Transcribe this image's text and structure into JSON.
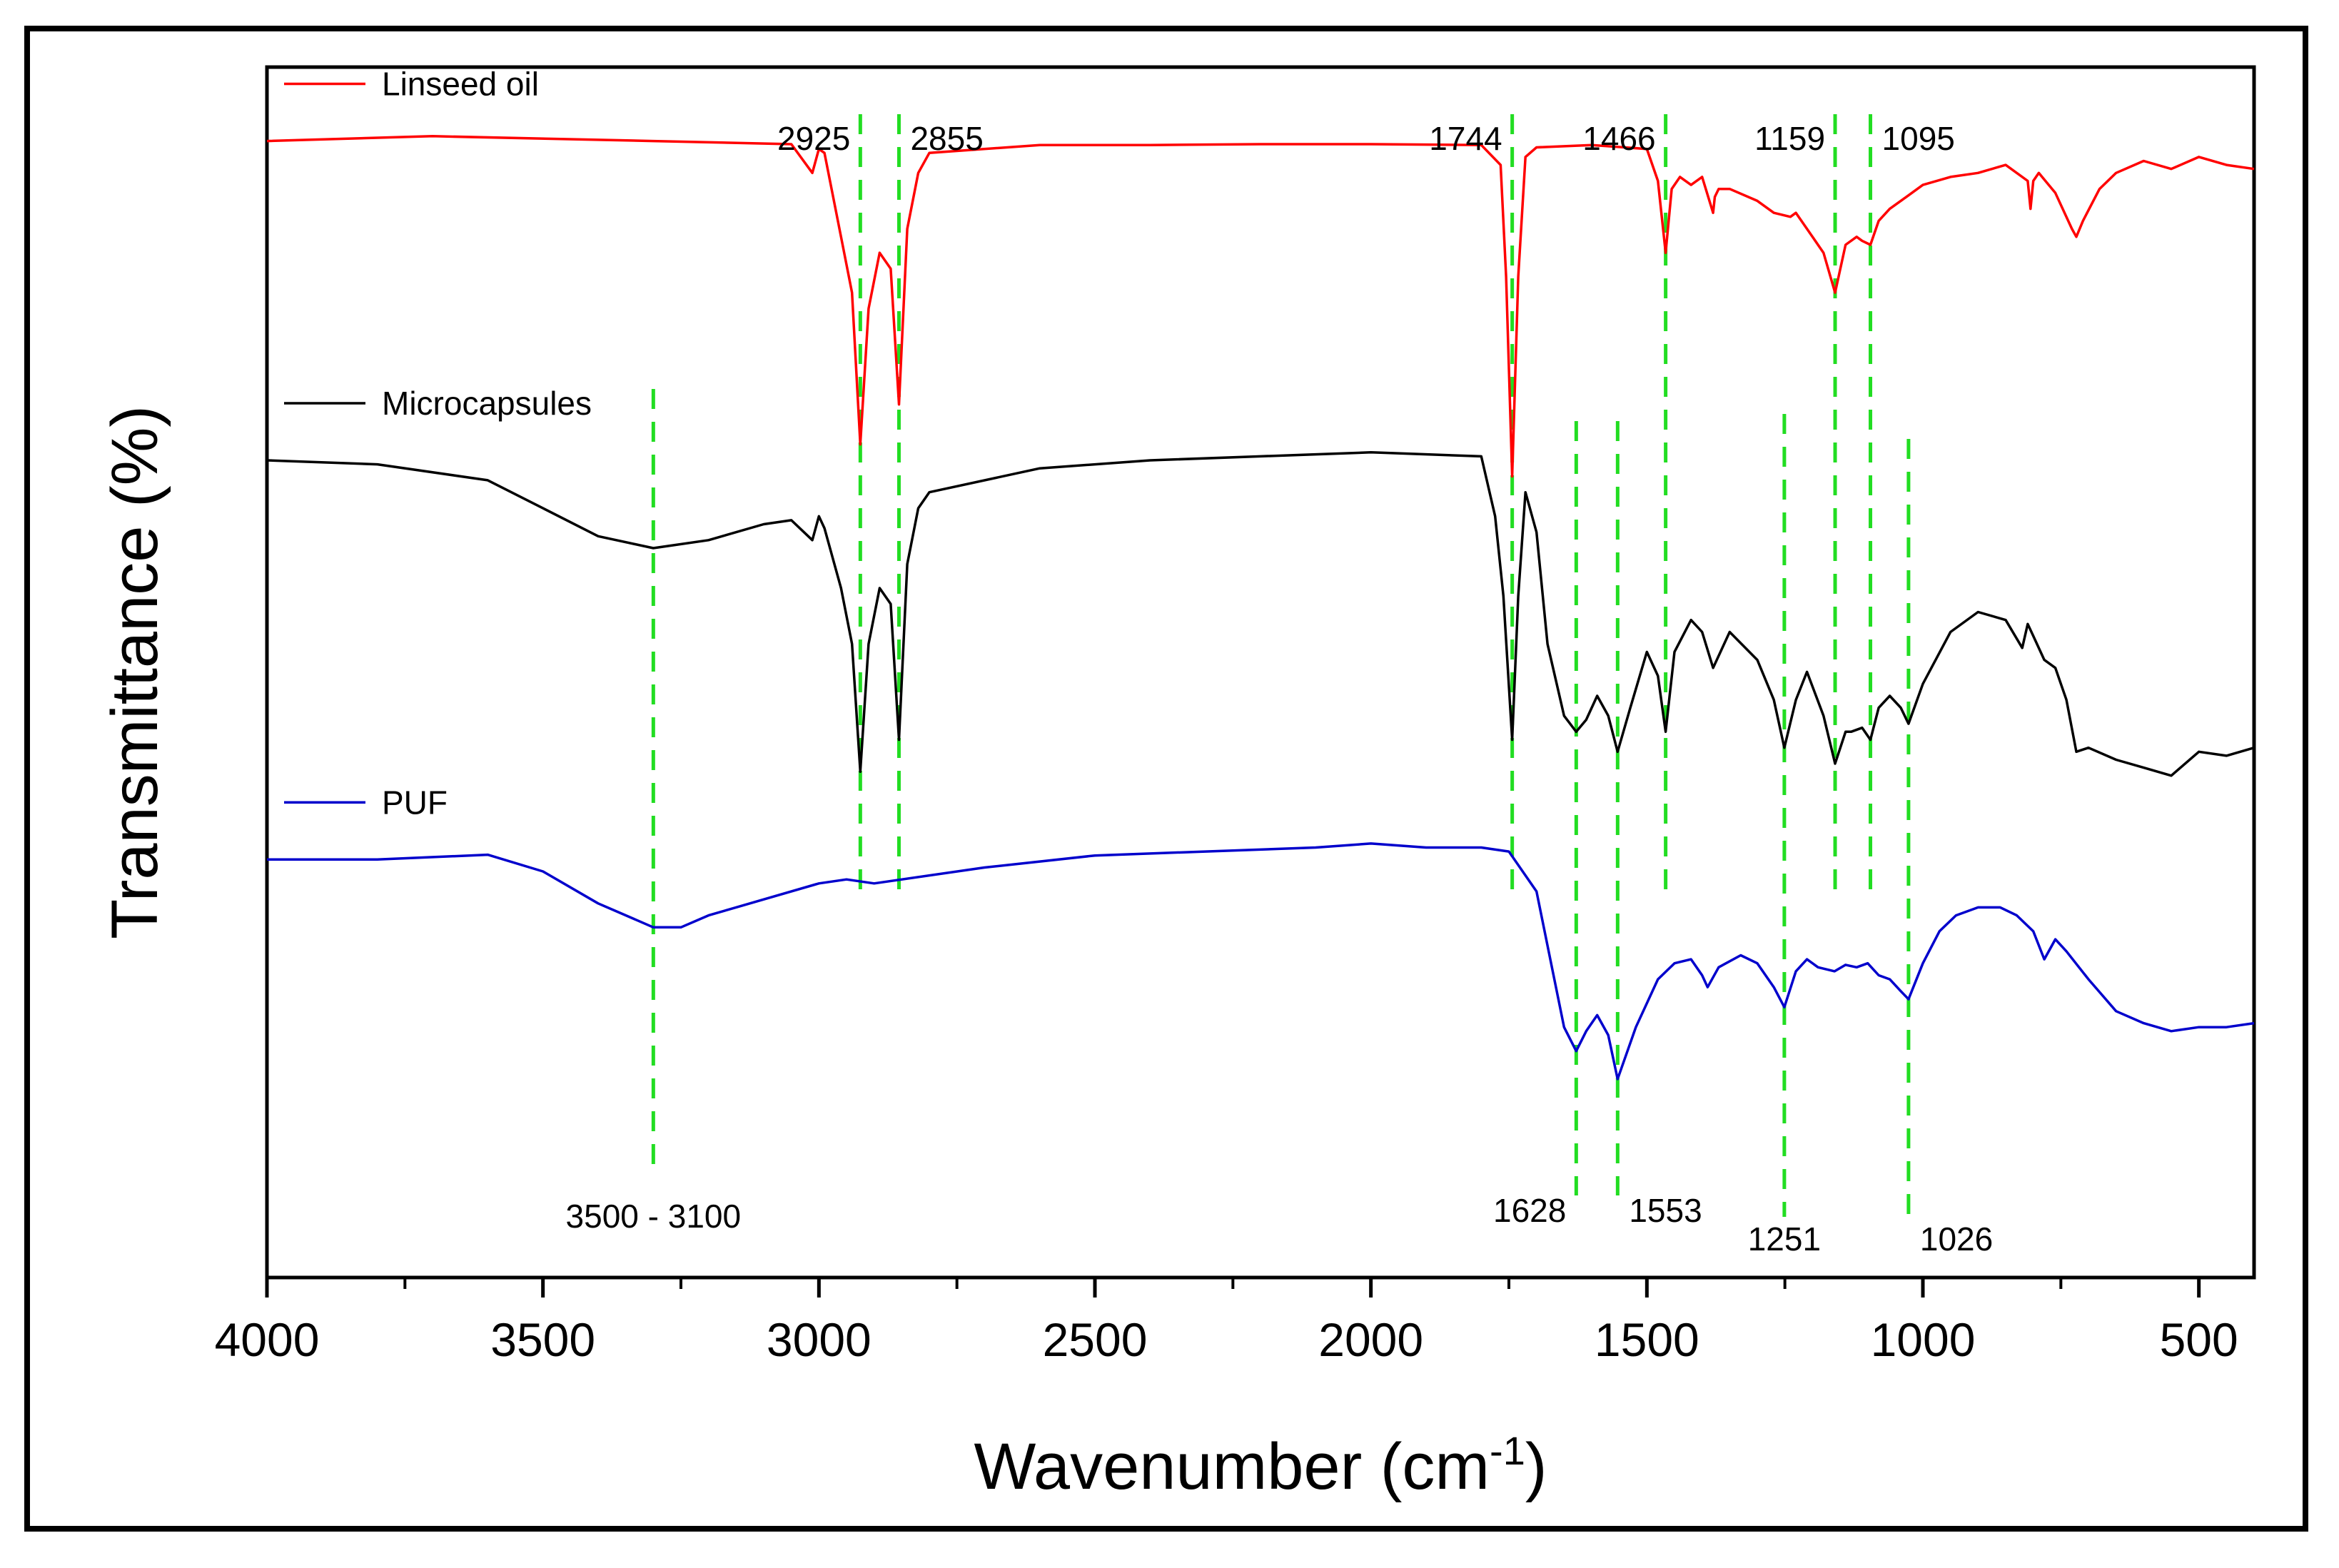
{
  "chart_data": {
    "type": "line",
    "title": "",
    "xlabel": "Wavenumber (cm",
    "xlabel_sup": "-1",
    "xlabel_close": ")",
    "ylabel": "Transmittance (%)",
    "xlim": [
      4000,
      400
    ],
    "xticks": [
      4000,
      3500,
      3000,
      2500,
      2000,
      1500,
      1000,
      500
    ],
    "yticks_visible": false,
    "series": [
      {
        "name": "Linseed oil",
        "color": "#ff0000",
        "offset": 0,
        "x": [
          4000,
          3700,
          3300,
          3050,
          3012,
          3000,
          2990,
          2960,
          2940,
          2925,
          2910,
          2890,
          2870,
          2855,
          2840,
          2820,
          2800,
          2600,
          2400,
          2200,
          2000,
          1800,
          1765,
          1755,
          1744,
          1733,
          1720,
          1700,
          1600,
          1500,
          1480,
          1466,
          1455,
          1440,
          1420,
          1400,
          1380,
          1377,
          1370,
          1350,
          1300,
          1270,
          1240,
          1230,
          1210,
          1180,
          1159,
          1140,
          1120,
          1110,
          1095,
          1080,
          1060,
          1030,
          1000,
          950,
          900,
          850,
          810,
          805,
          800,
          790,
          760,
          730,
          722,
          710,
          680,
          650,
          600,
          550,
          500,
          450,
          400
        ],
        "y": [
          97,
          97.6,
          97,
          96.6,
          93,
          96,
          95.5,
          85,
          78,
          59,
          76,
          83,
          81,
          64,
          86,
          93,
          95.5,
          96.5,
          96.5,
          96.6,
          96.6,
          96.5,
          94,
          80,
          55,
          80,
          95,
          96.2,
          96.5,
          96,
          92,
          83,
          91,
          92.5,
          91.5,
          92.5,
          88,
          90,
          91,
          91,
          89.5,
          88,
          87.5,
          88,
          86,
          83,
          78,
          84,
          85,
          84.5,
          84,
          87,
          88.5,
          90,
          91.5,
          92.5,
          93,
          94,
          92,
          88.5,
          92,
          93,
          90.5,
          86,
          85,
          87,
          91,
          93,
          94.5,
          93.5,
          95,
          94,
          93.5
        ]
      },
      {
        "name": "Microcapsules",
        "color": "#000000",
        "offset": -40,
        "x": [
          4000,
          3800,
          3600,
          3500,
          3400,
          3300,
          3200,
          3100,
          3050,
          3012,
          3000,
          2990,
          2960,
          2940,
          2925,
          2910,
          2890,
          2870,
          2855,
          2840,
          2820,
          2800,
          2600,
          2400,
          2200,
          2000,
          1800,
          1775,
          1760,
          1744,
          1733,
          1720,
          1700,
          1680,
          1650,
          1628,
          1610,
          1590,
          1570,
          1553,
          1530,
          1500,
          1480,
          1466,
          1450,
          1420,
          1400,
          1380,
          1350,
          1300,
          1270,
          1251,
          1230,
          1210,
          1180,
          1159,
          1140,
          1130,
          1110,
          1095,
          1080,
          1060,
          1040,
          1026,
          1000,
          950,
          900,
          850,
          820,
          810,
          800,
          780,
          760,
          740,
          722,
          700,
          650,
          600,
          550,
          500,
          450,
          400
        ],
        "y": [
          97,
          96.5,
          94.5,
          91,
          87.5,
          86,
          87,
          89,
          89.5,
          87,
          90,
          88.5,
          81,
          74,
          58,
          74,
          81,
          79,
          62,
          84,
          91,
          93,
          96,
          97,
          97.5,
          98,
          97.5,
          90,
          80,
          62,
          80,
          93,
          88,
          74,
          65,
          63,
          64.5,
          67.5,
          65,
          60.5,
          66,
          73,
          70,
          63,
          73,
          77,
          75.5,
          71,
          75.5,
          72,
          67,
          61,
          67,
          70.5,
          65,
          59,
          63,
          63,
          63.5,
          62,
          66,
          67.5,
          66,
          64,
          69,
          75.5,
          78,
          77,
          73.5,
          76.5,
          75,
          72,
          71,
          67,
          60.5,
          61,
          59.5,
          58.5,
          57.5,
          60.5,
          60,
          61
        ]
      },
      {
        "name": "PUF",
        "color": "#0000cc",
        "offset": -90,
        "x": [
          4000,
          3800,
          3600,
          3500,
          3400,
          3300,
          3250,
          3200,
          3100,
          3000,
          2950,
          2900,
          2700,
          2500,
          2300,
          2100,
          2000,
          1900,
          1800,
          1750,
          1700,
          1650,
          1628,
          1610,
          1590,
          1570,
          1553,
          1520,
          1480,
          1450,
          1420,
          1400,
          1390,
          1370,
          1330,
          1300,
          1270,
          1251,
          1230,
          1210,
          1190,
          1160,
          1140,
          1120,
          1100,
          1080,
          1060,
          1040,
          1026,
          1000,
          970,
          940,
          900,
          860,
          830,
          800,
          780,
          760,
          740,
          700,
          650,
          600,
          550,
          500,
          450,
          400
        ],
        "y": [
          97,
          97,
          97.6,
          95.5,
          91.5,
          88.5,
          88.5,
          90,
          92,
          94,
          94.5,
          94,
          96,
          97.5,
          98,
          98.5,
          99,
          98.5,
          98.5,
          98,
          93,
          76,
          73,
          75.5,
          77.5,
          75,
          69.5,
          76,
          82,
          84,
          84.5,
          82.5,
          81,
          83.5,
          85,
          84,
          81,
          78.5,
          83,
          84.5,
          83.5,
          83,
          83.8,
          83.5,
          84,
          82.5,
          82,
          80.5,
          79.5,
          84,
          88,
          90,
          91,
          91,
          90,
          88,
          84.5,
          87,
          85.5,
          82,
          78,
          76.5,
          75.5,
          76,
          76,
          76.5
        ]
      }
    ],
    "annotations": [
      {
        "x": 2925,
        "label": "2925",
        "side": "left",
        "row": 1
      },
      {
        "x": 2855,
        "label": "2855",
        "side": "right",
        "row": 1
      },
      {
        "x": 1744,
        "label": "1744",
        "side": "left",
        "row": 1
      },
      {
        "x": 1466,
        "label": "1466",
        "side": "left",
        "row": 1
      },
      {
        "x": 1159,
        "label": "1159",
        "side": "left",
        "row": 1
      },
      {
        "x": 1095,
        "label": "1095",
        "side": "right",
        "row": 1
      },
      {
        "x": 3300,
        "label": "3500 - 3100",
        "side": "center",
        "row": 2
      },
      {
        "x": 1628,
        "label": "1628",
        "side": "left",
        "row": 2
      },
      {
        "x": 1553,
        "label": "1553",
        "side": "right",
        "row": 2
      },
      {
        "x": 1251,
        "label": "1251",
        "side": "center",
        "row": 3
      },
      {
        "x": 1026,
        "label": "1026",
        "side": "right",
        "row": 3
      }
    ],
    "guide_color": "#22dd22"
  }
}
